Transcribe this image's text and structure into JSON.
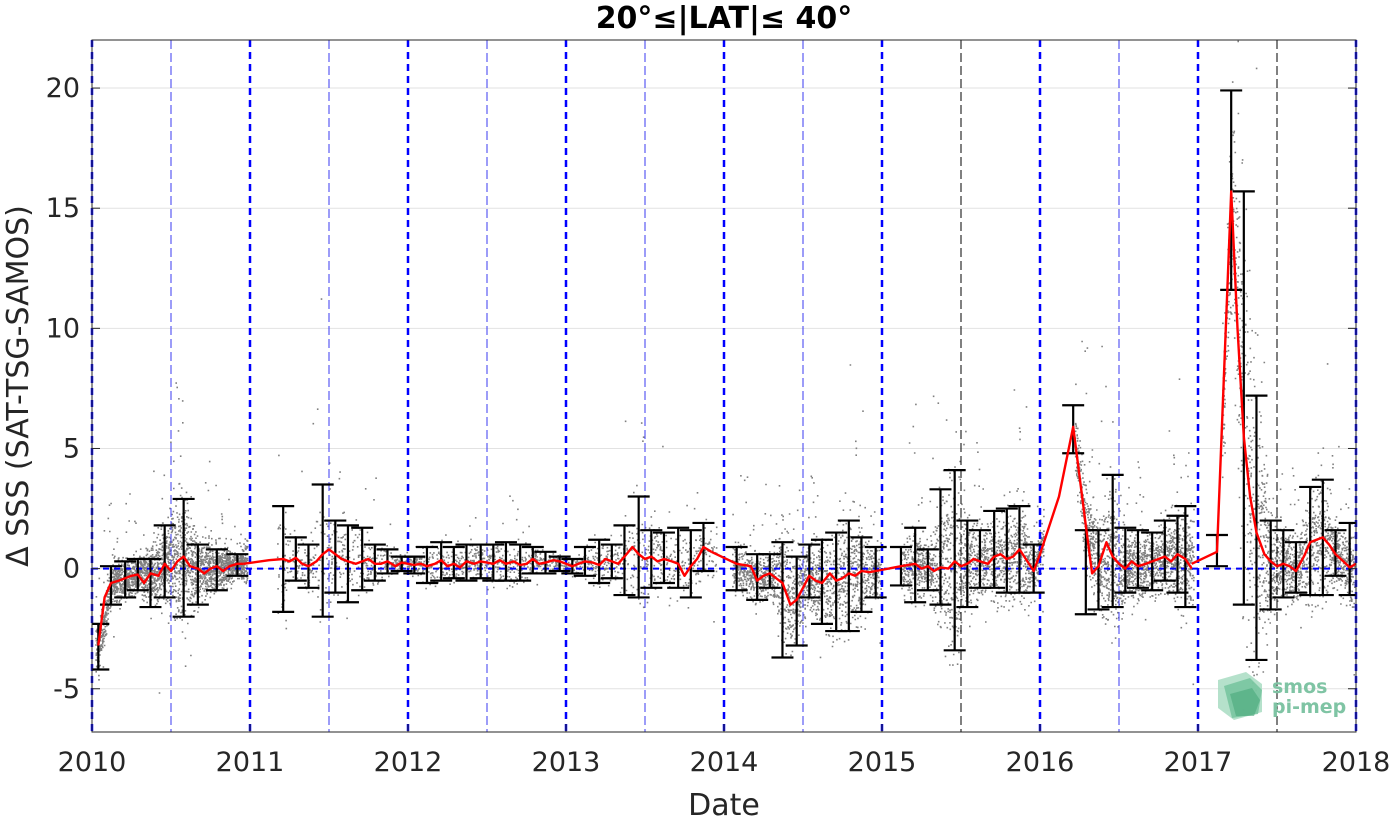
{
  "chart_data": {
    "type": "scatter",
    "title": "20°≤|LAT|≤ 40°",
    "xlabel": "Date",
    "ylabel": "Δ SSS (SAT-TSG-SAMOS)",
    "xlim": [
      2010,
      2018
    ],
    "ylim": [
      -6.8,
      22
    ],
    "x_ticks": [
      "2010",
      "2011",
      "2012",
      "2013",
      "2014",
      "2015",
      "2016",
      "2017",
      "2018"
    ],
    "y_ticks": [
      -5,
      0,
      5,
      10,
      15,
      20
    ],
    "y_tick_labels": [
      "-5",
      "0",
      "5",
      "10",
      "15",
      "20"
    ],
    "grid": true,
    "reference_line": 0,
    "year_boundaries": [
      2010,
      2011,
      2012,
      2013,
      2014,
      2015,
      2016,
      2017,
      2018
    ],
    "mid_year_lines": [
      2010.5,
      2011.5,
      2012.5,
      2013.5,
      2014.5,
      2015.5,
      2016.5,
      2017.5
    ],
    "colors": {
      "scatter": "#808080",
      "mean_line": "#ff0000",
      "error_bars": "#000000",
      "year_lines": "#0000ff",
      "mid_year_blue": "#3a3af0",
      "mid_year_black": "#000000",
      "grid": "#e2e2e2"
    },
    "series": [
      {
        "type": "line",
        "x": [
          2010.04,
          2010.08,
          2010.12,
          2010.17,
          2010.21,
          2010.25,
          2010.29,
          2010.33,
          2010.37,
          2010.42,
          2010.46,
          2010.5,
          2010.54,
          2010.58,
          2010.62,
          2010.67,
          2010.71,
          2010.75,
          2010.79,
          2010.83,
          2010.87,
          2010.92,
          2010.96
        ],
        "y": [
          -3.2,
          -1.2,
          -0.6,
          -0.5,
          -0.4,
          -0.3,
          -0.25,
          -0.6,
          -0.2,
          -0.3,
          0.2,
          -0.1,
          0.3,
          0.5,
          0.1,
          0.0,
          -0.2,
          0.0,
          0.1,
          -0.1,
          0.1,
          0.2,
          0.2
        ]
      },
      {
        "type": "line",
        "x": [
          2010.96,
          2011.12,
          2011.21,
          2011.25,
          2011.29,
          2011.33,
          2011.37,
          2011.42,
          2011.46,
          2011.5,
          2011.54,
          2011.58,
          2011.62,
          2011.67,
          2011.71,
          2011.75,
          2011.79,
          2011.83,
          2011.87,
          2011.92,
          2011.96,
          2012.0,
          2012.04,
          2012.08,
          2012.12,
          2012.17,
          2012.21,
          2012.25,
          2012.29,
          2012.33,
          2012.37,
          2012.42,
          2012.46,
          2012.5,
          2012.54,
          2012.58,
          2012.62,
          2012.67,
          2012.71,
          2012.75,
          2012.79,
          2012.83,
          2012.87,
          2012.92,
          2012.96,
          2013.0,
          2013.04,
          2013.08,
          2013.12,
          2013.17,
          2013.21,
          2013.25,
          2013.29,
          2013.33,
          2013.37,
          2013.42,
          2013.46,
          2013.5,
          2013.54,
          2013.58,
          2013.62,
          2013.67,
          2013.71,
          2013.75,
          2013.79,
          2013.83,
          2013.87,
          2013.92
        ],
        "y": [
          0.2,
          0.35,
          0.4,
          0.3,
          0.45,
          0.2,
          0.1,
          0.3,
          0.6,
          0.8,
          0.6,
          0.4,
          0.3,
          0.2,
          0.3,
          0.4,
          0.2,
          0.2,
          0.3,
          0.1,
          0.25,
          0.2,
          0.15,
          0.2,
          0.1,
          0.2,
          0.35,
          0.1,
          0.2,
          0.05,
          0.3,
          0.2,
          0.3,
          0.25,
          0.2,
          0.35,
          0.2,
          0.3,
          0.15,
          0.2,
          0.4,
          0.2,
          0.25,
          0.35,
          0.3,
          0.2,
          0.1,
          0.2,
          0.3,
          0.25,
          0.15,
          0.4,
          0.3,
          0.2,
          0.5,
          0.9,
          0.6,
          0.4,
          0.5,
          0.3,
          0.4,
          0.3,
          0.2,
          -0.3,
          0.1,
          0.4,
          0.9,
          0.7
        ]
      },
      {
        "type": "line",
        "x": [
          2013.92,
          2014.08,
          2014.17,
          2014.21,
          2014.25,
          2014.29,
          2014.33,
          2014.37,
          2014.42,
          2014.46,
          2014.5,
          2014.54,
          2014.58,
          2014.62,
          2014.67,
          2014.71,
          2014.75,
          2014.79,
          2014.83,
          2014.87,
          2014.92,
          2014.96
        ],
        "y": [
          0.7,
          0.2,
          0.1,
          -0.5,
          -0.3,
          -0.2,
          -0.4,
          -0.6,
          -1.5,
          -1.3,
          -0.8,
          -0.3,
          -0.5,
          -0.6,
          -0.2,
          -0.5,
          -0.4,
          -0.2,
          -0.3,
          -0.1,
          -0.15,
          -0.1
        ]
      },
      {
        "type": "line",
        "x": [
          2014.96,
          2015.12,
          2015.21,
          2015.25,
          2015.29,
          2015.33,
          2015.37,
          2015.42,
          2015.46,
          2015.5,
          2015.54,
          2015.58,
          2015.62,
          2015.67,
          2015.71,
          2015.75,
          2015.79,
          2015.83,
          2015.87,
          2015.92,
          2015.96,
          2016.0,
          2016.12,
          2016.21,
          2016.29,
          2016.33,
          2016.37,
          2016.42,
          2016.46,
          2016.5,
          2016.54,
          2016.58,
          2016.62,
          2016.67,
          2016.71,
          2016.75,
          2016.79,
          2016.83,
          2016.87,
          2016.92,
          2016.96
        ],
        "y": [
          -0.1,
          0.1,
          0.2,
          0.0,
          0.1,
          -0.1,
          0.05,
          0.0,
          0.3,
          0.1,
          0.2,
          0.4,
          0.3,
          0.2,
          0.5,
          0.6,
          0.4,
          0.5,
          0.8,
          0.3,
          -0.1,
          0.6,
          3.0,
          5.9,
          1.8,
          -0.2,
          0.1,
          1.1,
          0.5,
          0.2,
          0.0,
          0.3,
          0.1,
          0.2,
          0.3,
          0.4,
          0.5,
          0.3,
          0.6,
          0.4,
          0.0
        ]
      },
      {
        "type": "line",
        "x": [
          2016.96,
          2017.12,
          2017.21,
          2017.25,
          2017.29,
          2017.33,
          2017.37,
          2017.42,
          2017.46,
          2017.5,
          2017.54,
          2017.58,
          2017.62,
          2017.67,
          2017.71,
          2017.75,
          2017.79,
          2017.83,
          2017.87,
          2017.92,
          2017.96,
          2018.0
        ],
        "y": [
          0.2,
          0.7,
          15.7,
          10.0,
          5.5,
          3.0,
          1.5,
          0.6,
          0.3,
          0.1,
          0.2,
          0.1,
          -0.1,
          0.5,
          1.1,
          1.2,
          1.3,
          1.0,
          0.6,
          0.3,
          0.05,
          0.2
        ]
      }
    ],
    "error_bars": [
      {
        "x": 2010.04,
        "y": -3.2,
        "low": -4.2,
        "high": -2.3
      },
      {
        "x": 2010.12,
        "y": -0.6,
        "low": -1.5,
        "high": 0.1
      },
      {
        "x": 2010.21,
        "y": -0.4,
        "low": -1.2,
        "high": 0.3
      },
      {
        "x": 2010.29,
        "y": -0.25,
        "low": -0.9,
        "high": 0.4
      },
      {
        "x": 2010.37,
        "y": -0.2,
        "low": -1.6,
        "high": 0.4
      },
      {
        "x": 2010.46,
        "y": 0.2,
        "low": -1.2,
        "high": 1.8
      },
      {
        "x": 2010.58,
        "y": 0.5,
        "low": -2.0,
        "high": 2.9
      },
      {
        "x": 2010.67,
        "y": 0.0,
        "low": -1.5,
        "high": 1.0
      },
      {
        "x": 2010.79,
        "y": 0.1,
        "low": -0.9,
        "high": 0.8
      },
      {
        "x": 2010.92,
        "y": 0.2,
        "low": -0.3,
        "high": 0.6
      },
      {
        "x": 2011.21,
        "y": 0.4,
        "low": -1.8,
        "high": 2.6
      },
      {
        "x": 2011.29,
        "y": 0.45,
        "low": -0.5,
        "high": 1.3
      },
      {
        "x": 2011.37,
        "y": 0.1,
        "low": -0.8,
        "high": 1.0
      },
      {
        "x": 2011.46,
        "y": 0.6,
        "low": -2.0,
        "high": 3.5
      },
      {
        "x": 2011.54,
        "y": 0.6,
        "low": -1.0,
        "high": 2.0
      },
      {
        "x": 2011.62,
        "y": 0.3,
        "low": -1.4,
        "high": 1.8
      },
      {
        "x": 2011.71,
        "y": 0.3,
        "low": -0.9,
        "high": 1.7
      },
      {
        "x": 2011.79,
        "y": 0.2,
        "low": -0.5,
        "high": 1.0
      },
      {
        "x": 2011.87,
        "y": 0.3,
        "low": -0.2,
        "high": 0.8
      },
      {
        "x": 2011.96,
        "y": 0.25,
        "low": -0.1,
        "high": 0.5
      },
      {
        "x": 2012.04,
        "y": 0.15,
        "low": -0.2,
        "high": 0.5
      },
      {
        "x": 2012.12,
        "y": 0.1,
        "low": -0.6,
        "high": 0.9
      },
      {
        "x": 2012.21,
        "y": 0.35,
        "low": -0.5,
        "high": 1.1
      },
      {
        "x": 2012.29,
        "y": 0.2,
        "low": -0.4,
        "high": 0.9
      },
      {
        "x": 2012.37,
        "y": 0.3,
        "low": -0.5,
        "high": 1.0
      },
      {
        "x": 2012.46,
        "y": 0.3,
        "low": -0.4,
        "high": 1.0
      },
      {
        "x": 2012.54,
        "y": 0.2,
        "low": -0.5,
        "high": 1.0
      },
      {
        "x": 2012.62,
        "y": 0.2,
        "low": -0.5,
        "high": 1.1
      },
      {
        "x": 2012.71,
        "y": 0.15,
        "low": -0.5,
        "high": 1.0
      },
      {
        "x": 2012.79,
        "y": 0.4,
        "low": -0.2,
        "high": 0.9
      },
      {
        "x": 2012.87,
        "y": 0.25,
        "low": -0.2,
        "high": 0.7
      },
      {
        "x": 2012.96,
        "y": 0.3,
        "low": -0.1,
        "high": 0.5
      },
      {
        "x": 2013.04,
        "y": 0.1,
        "low": -0.2,
        "high": 0.4
      },
      {
        "x": 2013.12,
        "y": 0.3,
        "low": -0.3,
        "high": 0.9
      },
      {
        "x": 2013.21,
        "y": 0.15,
        "low": -0.6,
        "high": 1.2
      },
      {
        "x": 2013.29,
        "y": 0.3,
        "low": -0.4,
        "high": 1.0
      },
      {
        "x": 2013.37,
        "y": 0.5,
        "low": -1.1,
        "high": 1.8
      },
      {
        "x": 2013.46,
        "y": 0.6,
        "low": -1.2,
        "high": 3.0
      },
      {
        "x": 2013.54,
        "y": 0.5,
        "low": -0.8,
        "high": 1.6
      },
      {
        "x": 2013.62,
        "y": 0.4,
        "low": -0.6,
        "high": 1.5
      },
      {
        "x": 2013.71,
        "y": 0.2,
        "low": -0.8,
        "high": 1.7
      },
      {
        "x": 2013.79,
        "y": 0.1,
        "low": -1.2,
        "high": 1.6
      },
      {
        "x": 2013.87,
        "y": 0.9,
        "low": -0.1,
        "high": 1.9
      },
      {
        "x": 2014.08,
        "y": 0.2,
        "low": -0.9,
        "high": 0.9
      },
      {
        "x": 2014.21,
        "y": -0.5,
        "low": -1.3,
        "high": 0.6
      },
      {
        "x": 2014.29,
        "y": -0.2,
        "low": -0.8,
        "high": 0.6
      },
      {
        "x": 2014.37,
        "y": -0.6,
        "low": -3.7,
        "high": 1.1
      },
      {
        "x": 2014.46,
        "y": -1.3,
        "low": -3.2,
        "high": 0.5
      },
      {
        "x": 2014.54,
        "y": -0.3,
        "low": -1.2,
        "high": 1.0
      },
      {
        "x": 2014.62,
        "y": -0.6,
        "low": -2.3,
        "high": 1.2
      },
      {
        "x": 2014.71,
        "y": -0.5,
        "low": -2.6,
        "high": 1.5
      },
      {
        "x": 2014.79,
        "y": -0.2,
        "low": -2.6,
        "high": 2.0
      },
      {
        "x": 2014.87,
        "y": -0.1,
        "low": -1.8,
        "high": 1.3
      },
      {
        "x": 2014.96,
        "y": -0.1,
        "low": -1.2,
        "high": 0.9
      },
      {
        "x": 2015.12,
        "y": 0.1,
        "low": -0.7,
        "high": 0.9
      },
      {
        "x": 2015.21,
        "y": 0.2,
        "low": -1.4,
        "high": 1.7
      },
      {
        "x": 2015.29,
        "y": 0.1,
        "low": -0.9,
        "high": 0.8
      },
      {
        "x": 2015.37,
        "y": 0.05,
        "low": -1.5,
        "high": 3.3
      },
      {
        "x": 2015.46,
        "y": 0.3,
        "low": -3.4,
        "high": 4.1
      },
      {
        "x": 2015.54,
        "y": 0.2,
        "low": -1.6,
        "high": 2.0
      },
      {
        "x": 2015.62,
        "y": 0.3,
        "low": -0.8,
        "high": 1.6
      },
      {
        "x": 2015.71,
        "y": 0.5,
        "low": -0.8,
        "high": 2.4
      },
      {
        "x": 2015.79,
        "y": 0.4,
        "low": -1.0,
        "high": 2.5
      },
      {
        "x": 2015.87,
        "y": 0.8,
        "low": -1.0,
        "high": 2.6
      },
      {
        "x": 2015.96,
        "y": -0.1,
        "low": -1.0,
        "high": 1.0
      },
      {
        "x": 2016.21,
        "y": 5.9,
        "low": 4.8,
        "high": 6.8
      },
      {
        "x": 2016.29,
        "y": 1.8,
        "low": -1.9,
        "high": 1.6
      },
      {
        "x": 2016.37,
        "y": 0.1,
        "low": -1.7,
        "high": 1.6
      },
      {
        "x": 2016.46,
        "y": 0.5,
        "low": -1.6,
        "high": 3.9
      },
      {
        "x": 2016.54,
        "y": 0.0,
        "low": -1.0,
        "high": 1.7
      },
      {
        "x": 2016.62,
        "y": 0.1,
        "low": -0.8,
        "high": 1.6
      },
      {
        "x": 2016.71,
        "y": 0.3,
        "low": -0.9,
        "high": 1.5
      },
      {
        "x": 2016.79,
        "y": 0.5,
        "low": -0.5,
        "high": 2.0
      },
      {
        "x": 2016.87,
        "y": 0.6,
        "low": -1.0,
        "high": 2.2
      },
      {
        "x": 2016.92,
        "y": 0.4,
        "low": -1.6,
        "high": 2.6
      },
      {
        "x": 2017.12,
        "y": 0.7,
        "low": 0.1,
        "high": 1.4
      },
      {
        "x": 2017.21,
        "y": 15.7,
        "low": 11.6,
        "high": 19.9
      },
      {
        "x": 2017.29,
        "y": 5.5,
        "low": -1.5,
        "high": 15.7
      },
      {
        "x": 2017.37,
        "y": 1.5,
        "low": -3.8,
        "high": 7.2
      },
      {
        "x": 2017.46,
        "y": 0.3,
        "low": -1.7,
        "high": 2.0
      },
      {
        "x": 2017.54,
        "y": 0.2,
        "low": -1.2,
        "high": 1.6
      },
      {
        "x": 2017.62,
        "y": -0.1,
        "low": -1.0,
        "high": 1.1
      },
      {
        "x": 2017.71,
        "y": 1.1,
        "low": -1.1,
        "high": 3.4
      },
      {
        "x": 2017.79,
        "y": 1.3,
        "low": -1.1,
        "high": 3.7
      },
      {
        "x": 2017.87,
        "y": 0.6,
        "low": -0.3,
        "high": 1.6
      },
      {
        "x": 2017.96,
        "y": 0.05,
        "low": -1.1,
        "high": 1.9
      }
    ],
    "scatter_segments": [
      {
        "start": 2010.02,
        "end": 2010.98
      },
      {
        "start": 2011.17,
        "end": 2013.95
      },
      {
        "start": 2014.05,
        "end": 2014.99
      },
      {
        "start": 2015.12,
        "end": 2016.02
      },
      {
        "start": 2016.22,
        "end": 2016.97
      },
      {
        "start": 2017.15,
        "end": 2017.99
      }
    ]
  },
  "logo": {
    "line1": "smos",
    "line2": "pi-mep"
  }
}
